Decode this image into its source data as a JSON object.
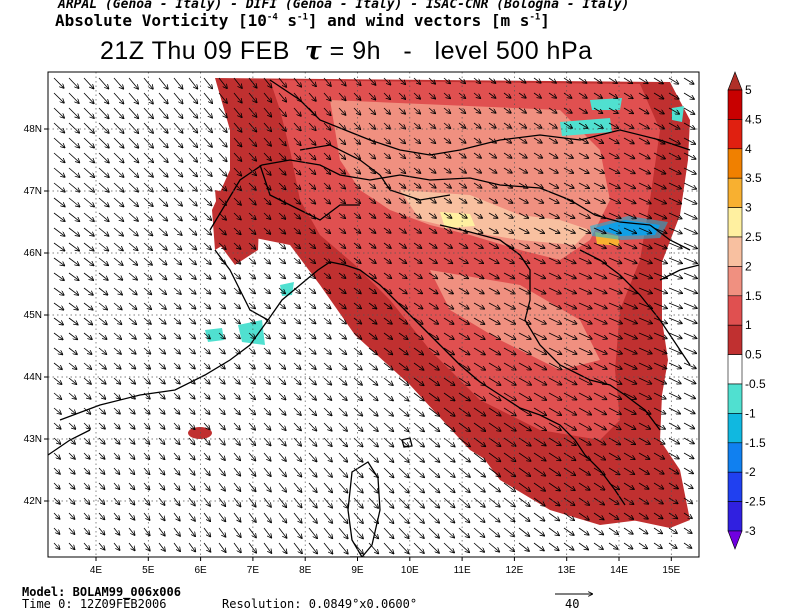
{
  "header": {
    "credits": "ARPAL (Genoa - Italy)  -  DIFI (Genoa - Italy)  -  ISAC-CNR (Bologna - Italy)",
    "title_prefix": "Absolute Vorticity [10",
    "title_exp1": "-4",
    "title_mid": " s",
    "title_exp2": "-1",
    "title_suffix": "] and wind vectors [m s",
    "title_exp3": "-1",
    "title_end": "]",
    "time_label": "21Z Thu 09 FEB",
    "tau_symbol": "τ",
    "tau_value": "= 9h",
    "level_label": "level 500 hPa"
  },
  "chart_data": {
    "type": "heatmap",
    "x_ticks": [
      "4E",
      "5E",
      "6E",
      "7E",
      "8E",
      "9E",
      "10E",
      "11E",
      "12E",
      "13E",
      "14E",
      "15E"
    ],
    "y_ticks": [
      "48N",
      "47N",
      "46N",
      "45N",
      "44N",
      "43N",
      "42N"
    ],
    "colorbar": {
      "labels": [
        "5",
        "4.5",
        "4",
        "3.5",
        "3",
        "2.5",
        "2",
        "1.5",
        "1",
        "0.5",
        "-0.5",
        "-1",
        "-1.5",
        "-2",
        "-2.5",
        "-3"
      ],
      "colors": [
        "#b03028",
        "#c80000",
        "#e02010",
        "#f08000",
        "#f8b030",
        "#fff0a0",
        "#f8c0a0",
        "#f09080",
        "#e05050",
        "#c03030",
        "#ffffff",
        "#50e0d0",
        "#10b8e0",
        "#1080f0",
        "#2040f0",
        "#3020e0",
        "#7000e0"
      ]
    },
    "wind_reference_vector": "40"
  },
  "footer": {
    "model_label": "Model:",
    "model_value": "BOLAM99_006x006",
    "time0_label": "Time 0:",
    "time0_value": "12Z09FEB2006",
    "resolution_label": "Resolution:",
    "resolution_value": "0.0849°x0.0600°",
    "ref_vector_label": "40"
  }
}
